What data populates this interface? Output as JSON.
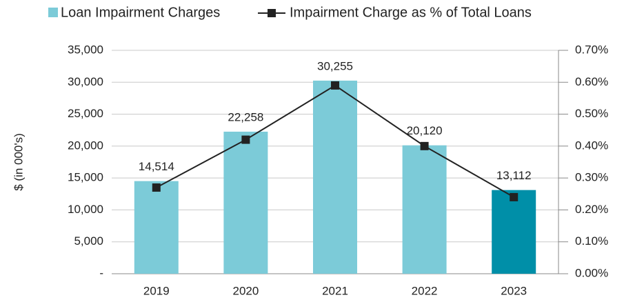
{
  "chart_data": {
    "type": "bar_line",
    "y_label": "$ (in 000's)",
    "categories": [
      "2019",
      "2020",
      "2021",
      "2022",
      "2023"
    ],
    "series": [
      {
        "name": "Loan Impairment Charges",
        "color": "#7ccbd8",
        "colors": [
          "#7ccbd8",
          "#7ccbd8",
          "#7ccbd8",
          "#7ccbd8",
          "#008fa8"
        ],
        "values": [
          14514,
          22258,
          30255,
          20120,
          13112
        ],
        "value_labels": [
          "14,514",
          "22,258",
          "30,255",
          "20,120",
          "13,112"
        ]
      },
      {
        "name": "Impairment Charge as % of Total Loans",
        "color": "#222222",
        "axis": "y2",
        "values": [
          0.27,
          0.42,
          0.59,
          0.4,
          0.24
        ]
      }
    ],
    "ylim": [
      0,
      35000
    ],
    "yticks": [
      {
        "value": 0,
        "label": "-"
      },
      {
        "value": 5000,
        "label": "5,000"
      },
      {
        "value": 10000,
        "label": "10,000"
      },
      {
        "value": 15000,
        "label": "15,000"
      },
      {
        "value": 20000,
        "label": "20,000"
      },
      {
        "value": 25000,
        "label": "25,000"
      },
      {
        "value": 30000,
        "label": "30,000"
      },
      {
        "value": 35000,
        "label": "35,000"
      }
    ],
    "y2lim": [
      0,
      0.7
    ],
    "y2ticks": [
      {
        "value": 0,
        "label": "0.00%"
      },
      {
        "value": 0.1,
        "label": "0.10%"
      },
      {
        "value": 0.2,
        "label": "0.20%"
      },
      {
        "value": 0.3,
        "label": "0.30%"
      },
      {
        "value": 0.4,
        "label": "0.40%"
      },
      {
        "value": 0.5,
        "label": "0.50%"
      },
      {
        "value": 0.6,
        "label": "0.60%"
      },
      {
        "value": 0.7,
        "label": "0.70%"
      }
    ],
    "grid": true
  }
}
